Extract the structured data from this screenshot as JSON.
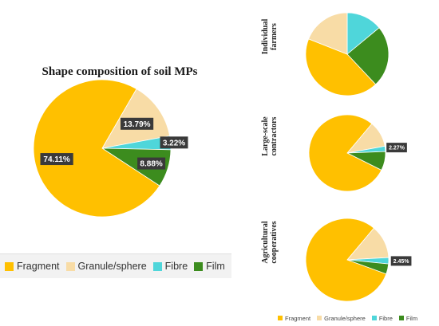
{
  "colors": {
    "Fragment": "#FFC000",
    "Granule/sphere": "#F8DCA6",
    "Fibre": "#4FD6DA",
    "Film": "#3C8C1E"
  },
  "chart_data": [
    {
      "type": "pie",
      "title": "Shape composition of soil MPs",
      "categories": [
        "Fragment",
        "Granule/sphere",
        "Fibre",
        "Film"
      ],
      "values": [
        74.11,
        13.79,
        3.22,
        8.88
      ],
      "data_labels": [
        "74.11%",
        "13.79%",
        "3.22%",
        "8.88%"
      ],
      "legend": "bottom"
    },
    {
      "type": "pie",
      "title": "Individual farmers",
      "categories": [
        "Fragment",
        "Granule/sphere",
        "Fibre",
        "Film"
      ],
      "values": [
        43,
        19,
        14,
        24
      ],
      "data_labels": []
    },
    {
      "type": "pie",
      "title": "Large-scale contractors",
      "categories": [
        "Fragment",
        "Granule/sphere",
        "Fibre",
        "Film"
      ],
      "values": [
        78.73,
        11,
        2.27,
        8
      ],
      "data_labels": [
        "",
        "",
        "2.27%",
        ""
      ]
    },
    {
      "type": "pie",
      "title": "Agricultural cooperatives",
      "categories": [
        "Fragment",
        "Granule/sphere",
        "Fibre",
        "Film"
      ],
      "values": [
        80.55,
        13,
        2.45,
        4
      ],
      "data_labels": [
        "",
        "",
        "2.45%",
        ""
      ],
      "legend": "bottom"
    }
  ],
  "legend_labels": [
    "Fragment",
    "Granule/sphere",
    "Fibre",
    "Film"
  ]
}
